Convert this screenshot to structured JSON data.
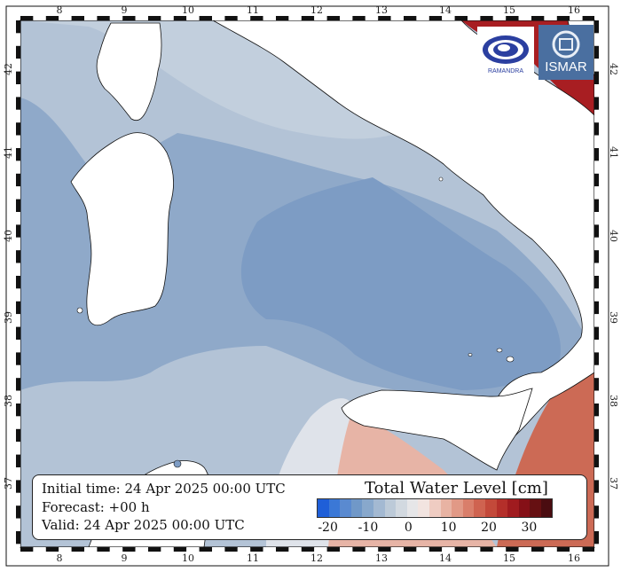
{
  "map": {
    "lon_ticks": [
      "8",
      "9",
      "10",
      "11",
      "12",
      "13",
      "14",
      "15",
      "16"
    ],
    "lat_ticks": [
      "42",
      "41",
      "40",
      "39",
      "38",
      "37"
    ]
  },
  "info": {
    "initial_time": "Initial time: 24 Apr 2025 00:00 UTC",
    "forecast": "Forecast: +00 h",
    "valid": "Valid: 24 Apr 2025 00:00 UTC"
  },
  "legend": {
    "title": "Total Water Level [cm]",
    "tick_labels": [
      "-20",
      "-10",
      "0",
      "10",
      "20",
      "30"
    ],
    "colors": [
      "#1f5fd8",
      "#3b78d6",
      "#5a8ad0",
      "#7098c8",
      "#88a8cc",
      "#a3b9d2",
      "#bccad8",
      "#d2d9e0",
      "#e6e6e8",
      "#f2e4e0",
      "#efccc2",
      "#e8b3a3",
      "#e19986",
      "#d97e6a",
      "#cf6350",
      "#c3493a",
      "#b42f2a",
      "#a01b1f",
      "#851017",
      "#661012",
      "#4a0c10"
    ]
  },
  "logos": {
    "left_alt": "RAMANDRA",
    "right_text": "ISMAR"
  }
}
